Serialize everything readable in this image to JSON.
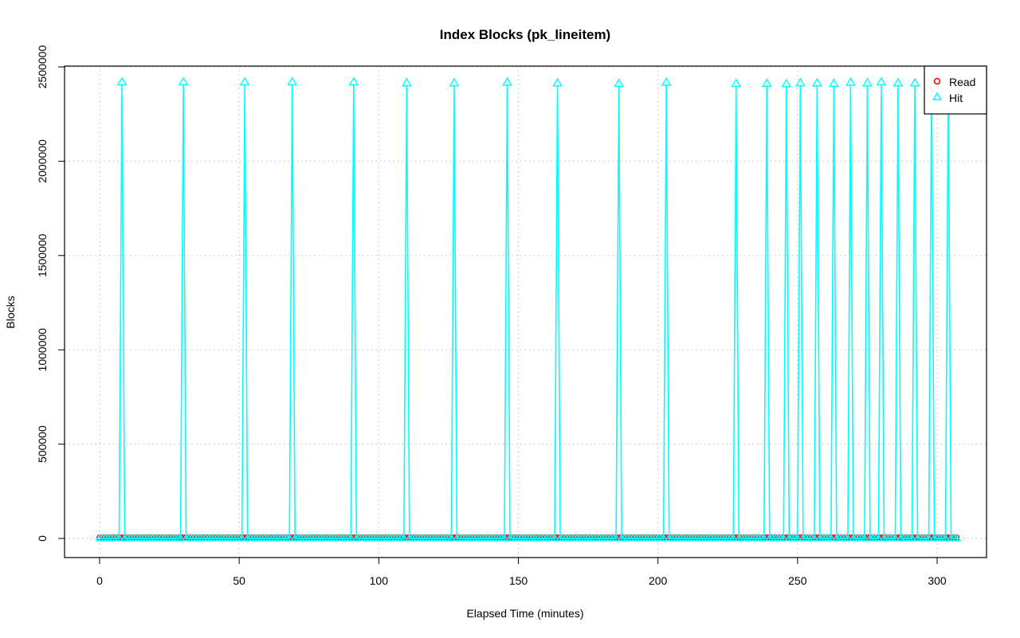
{
  "chart_data": {
    "type": "line",
    "title": "Index Blocks (pk_lineitem)",
    "xlabel": "Elapsed Time (minutes)",
    "ylabel": "Blocks",
    "xlim": [
      -12,
      317
    ],
    "ylim": [
      -100000,
      2510000
    ],
    "x_ticks": [
      0,
      50,
      100,
      150,
      200,
      250,
      300
    ],
    "x_tick_labels": [
      "0",
      "50",
      "100",
      "150",
      "200",
      "250",
      "300"
    ],
    "y_ticks": [
      0,
      500000,
      1000000,
      1500000,
      2000000,
      2500000
    ],
    "y_tick_labels": [
      "0",
      "500000",
      "1000000",
      "1500000",
      "2000000",
      "2500000"
    ],
    "grid": true,
    "legend": {
      "position": "top-right",
      "entries": [
        "Read",
        "Hit"
      ]
    },
    "sampling": {
      "x_start": 0,
      "x_end": 307,
      "step": 1,
      "baseline_value": 0
    },
    "series": [
      {
        "name": "Read",
        "color": "#ff0000",
        "marker": "circle",
        "baseline": 5000,
        "spikes": []
      },
      {
        "name": "Hit",
        "color": "#00ffff",
        "marker": "triangle",
        "baseline": 0,
        "spikes": [
          {
            "x": 8,
            "y": 2410000
          },
          {
            "x": 30,
            "y": 2410000
          },
          {
            "x": 52,
            "y": 2410000
          },
          {
            "x": 69,
            "y": 2410000
          },
          {
            "x": 91,
            "y": 2410000
          },
          {
            "x": 110,
            "y": 2405000
          },
          {
            "x": 127,
            "y": 2405000
          },
          {
            "x": 146,
            "y": 2408000
          },
          {
            "x": 164,
            "y": 2405000
          },
          {
            "x": 186,
            "y": 2402000
          },
          {
            "x": 203,
            "y": 2408000
          },
          {
            "x": 228,
            "y": 2402000
          },
          {
            "x": 239,
            "y": 2402000
          },
          {
            "x": 246,
            "y": 2400000
          },
          {
            "x": 251,
            "y": 2405000
          },
          {
            "x": 257,
            "y": 2405000
          },
          {
            "x": 263,
            "y": 2402000
          },
          {
            "x": 269,
            "y": 2408000
          },
          {
            "x": 275,
            "y": 2405000
          },
          {
            "x": 280,
            "y": 2410000
          },
          {
            "x": 286,
            "y": 2405000
          },
          {
            "x": 292,
            "y": 2405000
          },
          {
            "x": 298,
            "y": 2405000
          },
          {
            "x": 304,
            "y": 2405000
          }
        ]
      }
    ]
  }
}
